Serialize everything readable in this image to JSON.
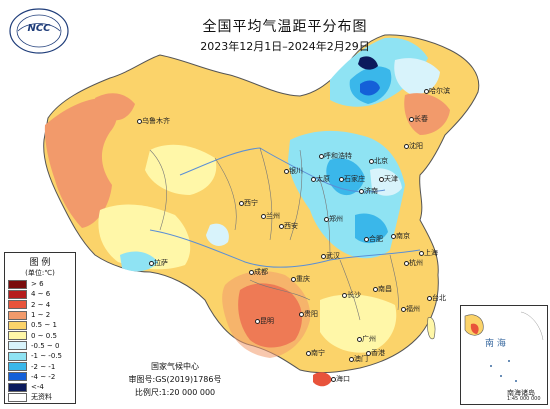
{
  "title": "全国平均气温距平分布图",
  "subtitle": "2023年12月1日–2024年2月29日",
  "logo": {
    "text": "NCC",
    "name": "logo-icon"
  },
  "legend": {
    "title": "图 例",
    "unit": "(单位:℃)",
    "items": [
      {
        "label": "> 6",
        "color": "#7a0c0c"
      },
      {
        "label": "4 ~ 6",
        "color": "#b51c1c"
      },
      {
        "label": "2 ~ 4",
        "color": "#e8533b"
      },
      {
        "label": "1 ~ 2",
        "color": "#f29a6b"
      },
      {
        "label": "0.5 ~ 1",
        "color": "#fbd36a"
      },
      {
        "label": "0 ~ 0.5",
        "color": "#fff7a8"
      },
      {
        "label": "-0.5 ~ 0",
        "color": "#d8f3fb"
      },
      {
        "label": "-1 ~ -0.5",
        "color": "#8fe3f3"
      },
      {
        "label": "-2 ~ -1",
        "color": "#3ab7ea"
      },
      {
        "label": "-4 ~ -2",
        "color": "#1460d8"
      },
      {
        "label": "<-4",
        "color": "#0b1a5c"
      },
      {
        "label": "无资料",
        "color": "#ffffff"
      }
    ]
  },
  "credits": {
    "org": "国家气候中心",
    "approval": "审图号:GS(2019)1786号",
    "scale": "比例尺:1:20 000 000"
  },
  "inset": {
    "sea": "南 海",
    "caption1": "南海诸岛",
    "caption2": "1:45 000 000"
  },
  "cities": [
    {
      "name": "乌鲁木齐"
    },
    {
      "name": "拉萨"
    },
    {
      "name": "西宁"
    },
    {
      "name": "兰州"
    },
    {
      "name": "成都"
    },
    {
      "name": "重庆"
    },
    {
      "name": "贵阳"
    },
    {
      "name": "昆明"
    },
    {
      "name": "南宁"
    },
    {
      "name": "海口"
    },
    {
      "name": "广州"
    },
    {
      "name": "香港"
    },
    {
      "name": "澳门"
    },
    {
      "name": "长沙"
    },
    {
      "name": "南昌"
    },
    {
      "name": "福州"
    },
    {
      "name": "台北"
    },
    {
      "name": "武汉"
    },
    {
      "name": "合肥"
    },
    {
      "name": "杭州"
    },
    {
      "name": "上海"
    },
    {
      "name": "南京"
    },
    {
      "name": "郑州"
    },
    {
      "name": "西安"
    },
    {
      "name": "太原"
    },
    {
      "name": "石家庄"
    },
    {
      "name": "济南"
    },
    {
      "name": "北京"
    },
    {
      "name": "天津"
    },
    {
      "name": "呼和浩特"
    },
    {
      "name": "沈阳"
    },
    {
      "name": "长春"
    },
    {
      "name": "哈尔滨"
    },
    {
      "name": "银川"
    }
  ]
}
